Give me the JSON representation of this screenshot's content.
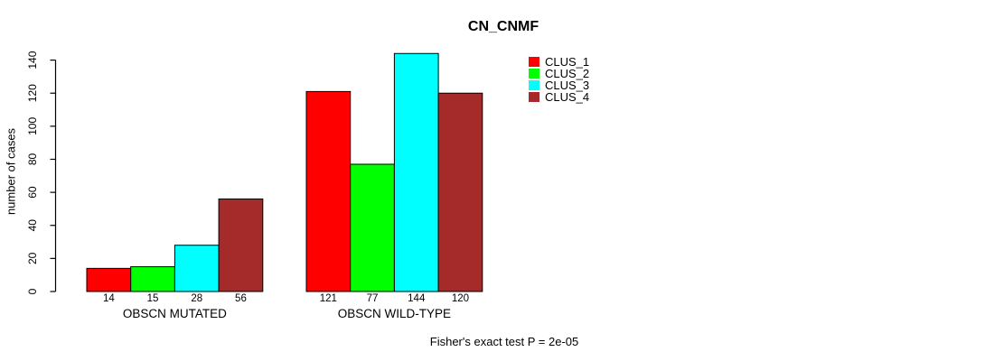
{
  "chart_data": {
    "type": "bar",
    "title": "CN_CNMF",
    "categories": [
      "OBSCN MUTATED",
      "OBSCN WILD-TYPE"
    ],
    "series": [
      {
        "name": "CLUS_1",
        "color": "#FF0000",
        "values": [
          14,
          121
        ]
      },
      {
        "name": "CLUS_2",
        "color": "#00FF00",
        "values": [
          15,
          77
        ]
      },
      {
        "name": "CLUS_3",
        "color": "#00FFFF",
        "values": [
          28,
          144
        ]
      },
      {
        "name": "CLUS_4",
        "color": "#A52A2A",
        "values": [
          56,
          120
        ]
      }
    ],
    "xlabel": "",
    "ylabel": "number of cases",
    "ylim": [
      0,
      140
    ],
    "yticks": [
      0,
      20,
      40,
      60,
      80,
      100,
      120,
      140
    ],
    "bar_border_color": "#000000",
    "value_labels_shown": true,
    "grid": false,
    "legend_position": "top-right",
    "annotation": "Fisher's exact test P = 2e-05",
    "background": "#FFFFFF"
  }
}
